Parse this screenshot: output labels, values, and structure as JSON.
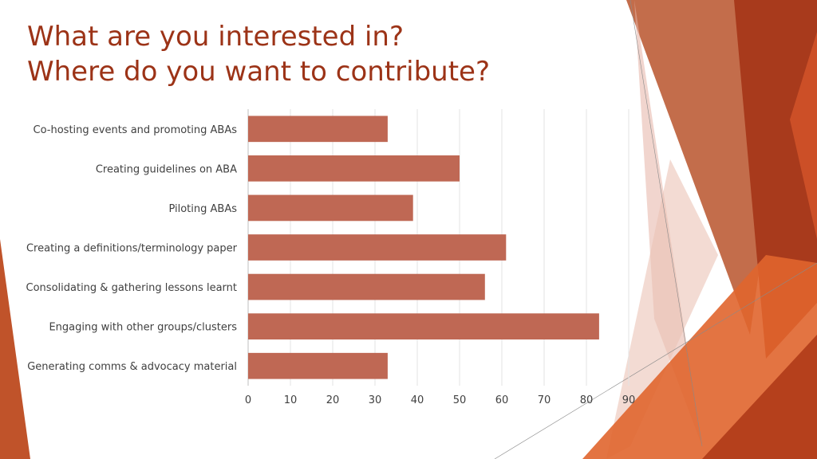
{
  "slide": {
    "title_line1": "What are you interested in?",
    "title_line2": "Where do you want to contribute?"
  },
  "colors": {
    "title": "#9c3317",
    "bar": "#bf6854",
    "grid": "#e3e3e3",
    "text": "#404040",
    "deco_dark": "#a83a1c",
    "deco_mid": "#c0532a",
    "deco_light": "#e0a593",
    "deco_orange": "#e0652e"
  },
  "chart_data": {
    "type": "bar",
    "orientation": "horizontal",
    "categories": [
      "Co-hosting events and promoting ABAs",
      "Creating guidelines on ABA",
      "Piloting ABAs",
      "Creating a definitions/terminology paper",
      "Consolidating & gathering lessons learnt",
      "Engaging with other groups/clusters",
      "Generating comms & advocacy material"
    ],
    "values": [
      33,
      50,
      39,
      61,
      56,
      83,
      33
    ],
    "xlim": [
      0,
      90
    ],
    "xticks": [
      "0",
      "10",
      "20",
      "30",
      "40",
      "50",
      "60",
      "70",
      "80",
      "90"
    ],
    "grid": true,
    "legend": "none"
  }
}
